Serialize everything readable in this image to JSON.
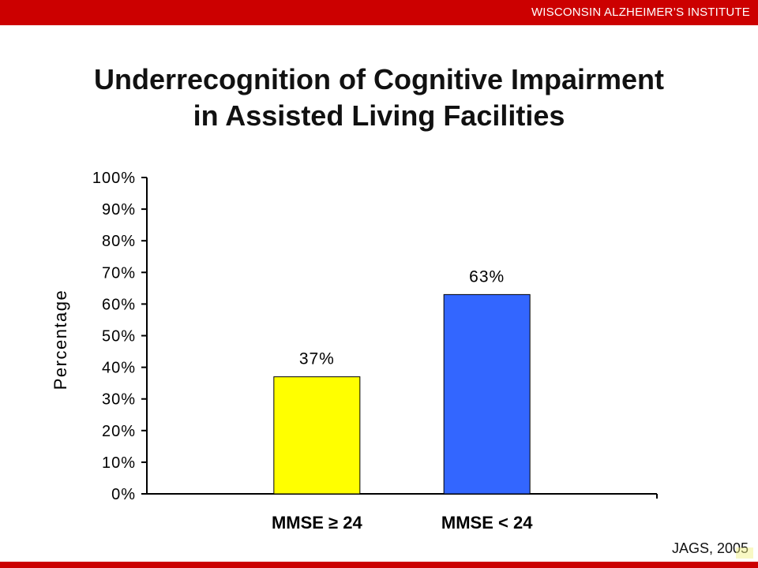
{
  "header": {
    "institute": "WISCONSIN ALZHEIMER’S INSTITUTE"
  },
  "colors": {
    "band": "#cc0000",
    "bar_1": "#ffff00",
    "bar_2": "#3366ff"
  },
  "chart_data": {
    "type": "bar",
    "title_lines": [
      "Underrecognition of Cognitive Impairment",
      "in Assisted Living Facilities"
    ],
    "ylabel": "Percentage",
    "xlabel": "",
    "categories": [
      "MMSE ≥ 24",
      "MMSE < 24"
    ],
    "values": [
      37,
      63
    ],
    "data_labels": [
      "37%",
      "63%"
    ],
    "bar_colors": [
      "#ffff00",
      "#3366ff"
    ],
    "ylim": [
      0,
      100
    ],
    "yticks": [
      "0%",
      "10%",
      "20%",
      "30%",
      "40%",
      "50%",
      "60%",
      "70%",
      "80%",
      "90%",
      "100%"
    ],
    "grid": false,
    "legend": "none"
  },
  "footer": {
    "source": "JAGS, 2005"
  }
}
